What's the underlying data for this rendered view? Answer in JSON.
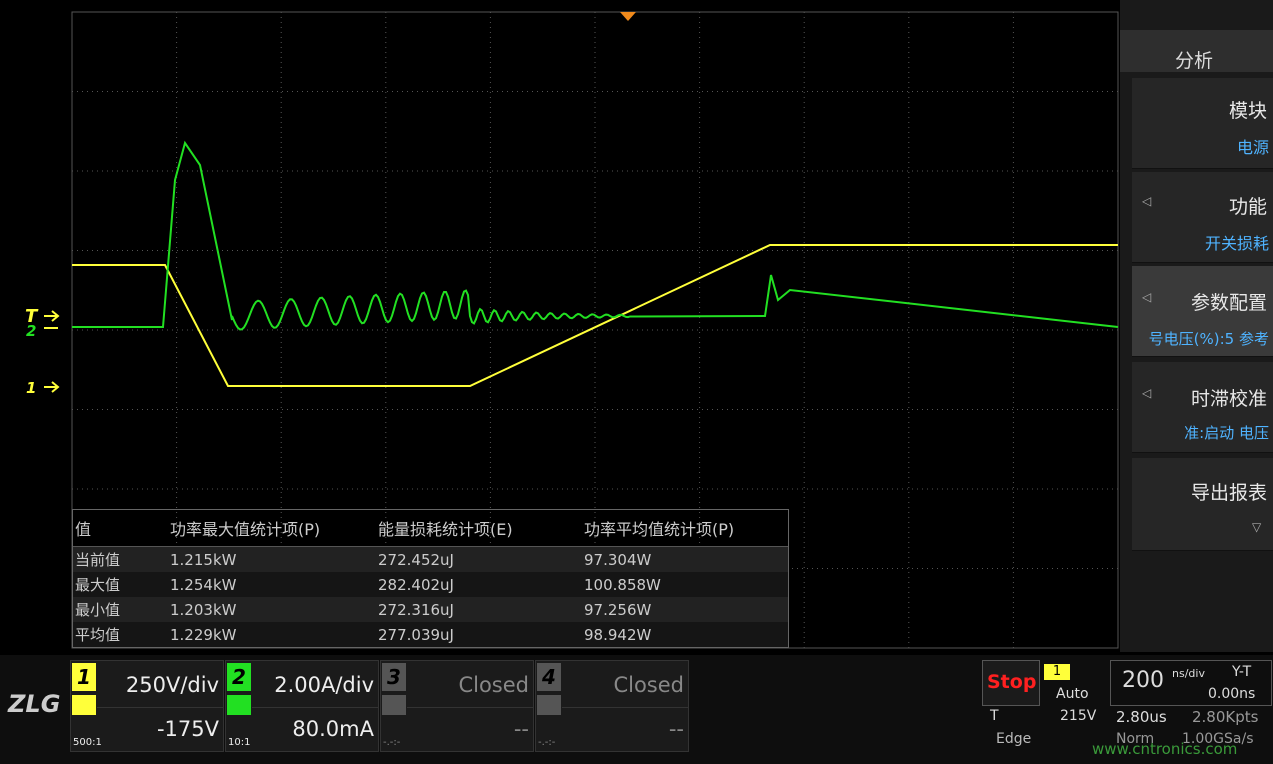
{
  "side_menu": {
    "title": "分析",
    "items": [
      {
        "label": "模块",
        "value": "电源"
      },
      {
        "label": "功能",
        "value": "开关损耗"
      },
      {
        "label": "参数配置",
        "value": "号电压(%):5  参考"
      },
      {
        "label": "时滞校准",
        "value": "准:启动         电压"
      },
      {
        "label": "导出报表"
      }
    ]
  },
  "markers": {
    "trigger": "T",
    "ch2": "2",
    "ch1": "1"
  },
  "table": {
    "header": [
      "值",
      "功率最大值统计项(P)",
      "能量损耗统计项(E)",
      "功率平均值统计项(P)"
    ],
    "rows": [
      [
        "当前值",
        "1.215kW",
        "272.452uJ",
        "97.304W"
      ],
      [
        "最大值",
        "1.254kW",
        "282.402uJ",
        "100.858W"
      ],
      [
        "最小值",
        "1.203kW",
        "272.316uJ",
        "97.256W"
      ],
      [
        "平均值",
        "1.229kW",
        "277.039uJ",
        "98.942W"
      ]
    ]
  },
  "channels": [
    {
      "number": "1",
      "scale": "250V/div",
      "offset": "-175V",
      "probe": "500:1"
    },
    {
      "number": "2",
      "scale": "2.00A/div",
      "offset": "80.0mA",
      "probe": "10:1"
    },
    {
      "number": "3",
      "scale": "Closed",
      "offset": "--",
      "probe": "-.-:-"
    },
    {
      "number": "4",
      "scale": "Closed",
      "offset": "--",
      "probe": "-.-:-"
    }
  ],
  "status": {
    "run": "Stop",
    "trigger_channel": "1",
    "trigger_mode": "Auto",
    "trigger_label": "T",
    "trigger_level": "215V",
    "trigger_type": "Edge",
    "timebase": "200",
    "timebase_unit": "ns/div",
    "mode": "Y-T",
    "delay": "0.00ns",
    "record_time": "2.80us",
    "points": "2.80Kpts",
    "acquire": "Norm",
    "rate": "1.00GSa/s"
  },
  "logo": "ZLG",
  "watermark": "www.cntronics.com"
}
